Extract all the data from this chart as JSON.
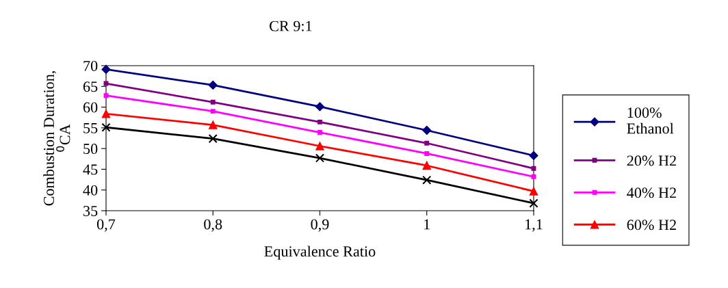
{
  "chart_data": {
    "type": "line",
    "title": "CR 9:1",
    "xlabel": "Equivalence Ratio",
    "ylabel": "Combustion Duration,\n$^{0}$CA",
    "categories": [
      "0,7",
      "0,8",
      "0,9",
      "1",
      "1,1"
    ],
    "series": [
      {
        "name": "100%\nEthanol",
        "color": "#000080",
        "marker": "diamond",
        "values": [
          69.1,
          65.3,
          60.1,
          54.4,
          48.3
        ]
      },
      {
        "name": "20% H2",
        "color": "#800080",
        "marker": "square",
        "values": [
          65.7,
          61.2,
          56.4,
          51.3,
          45.2
        ]
      },
      {
        "name": "40% H2",
        "color": "#ff00ff",
        "marker": "square",
        "values": [
          62.8,
          59.0,
          53.9,
          48.8,
          43.2
        ]
      },
      {
        "name": "60% H2",
        "color": "#ff0000",
        "marker": "triangle",
        "values": [
          58.4,
          55.7,
          50.6,
          45.9,
          39.7
        ]
      },
      {
        "color": "#000000",
        "marker": "cross",
        "values": [
          55.1,
          52.4,
          47.7,
          42.4,
          36.8
        ]
      }
    ],
    "ylim": [
      35,
      70
    ],
    "yticks": [
      35,
      40,
      45,
      50,
      55,
      60,
      65,
      70
    ],
    "grid": false,
    "legend": "right",
    "line_style": "solid"
  }
}
